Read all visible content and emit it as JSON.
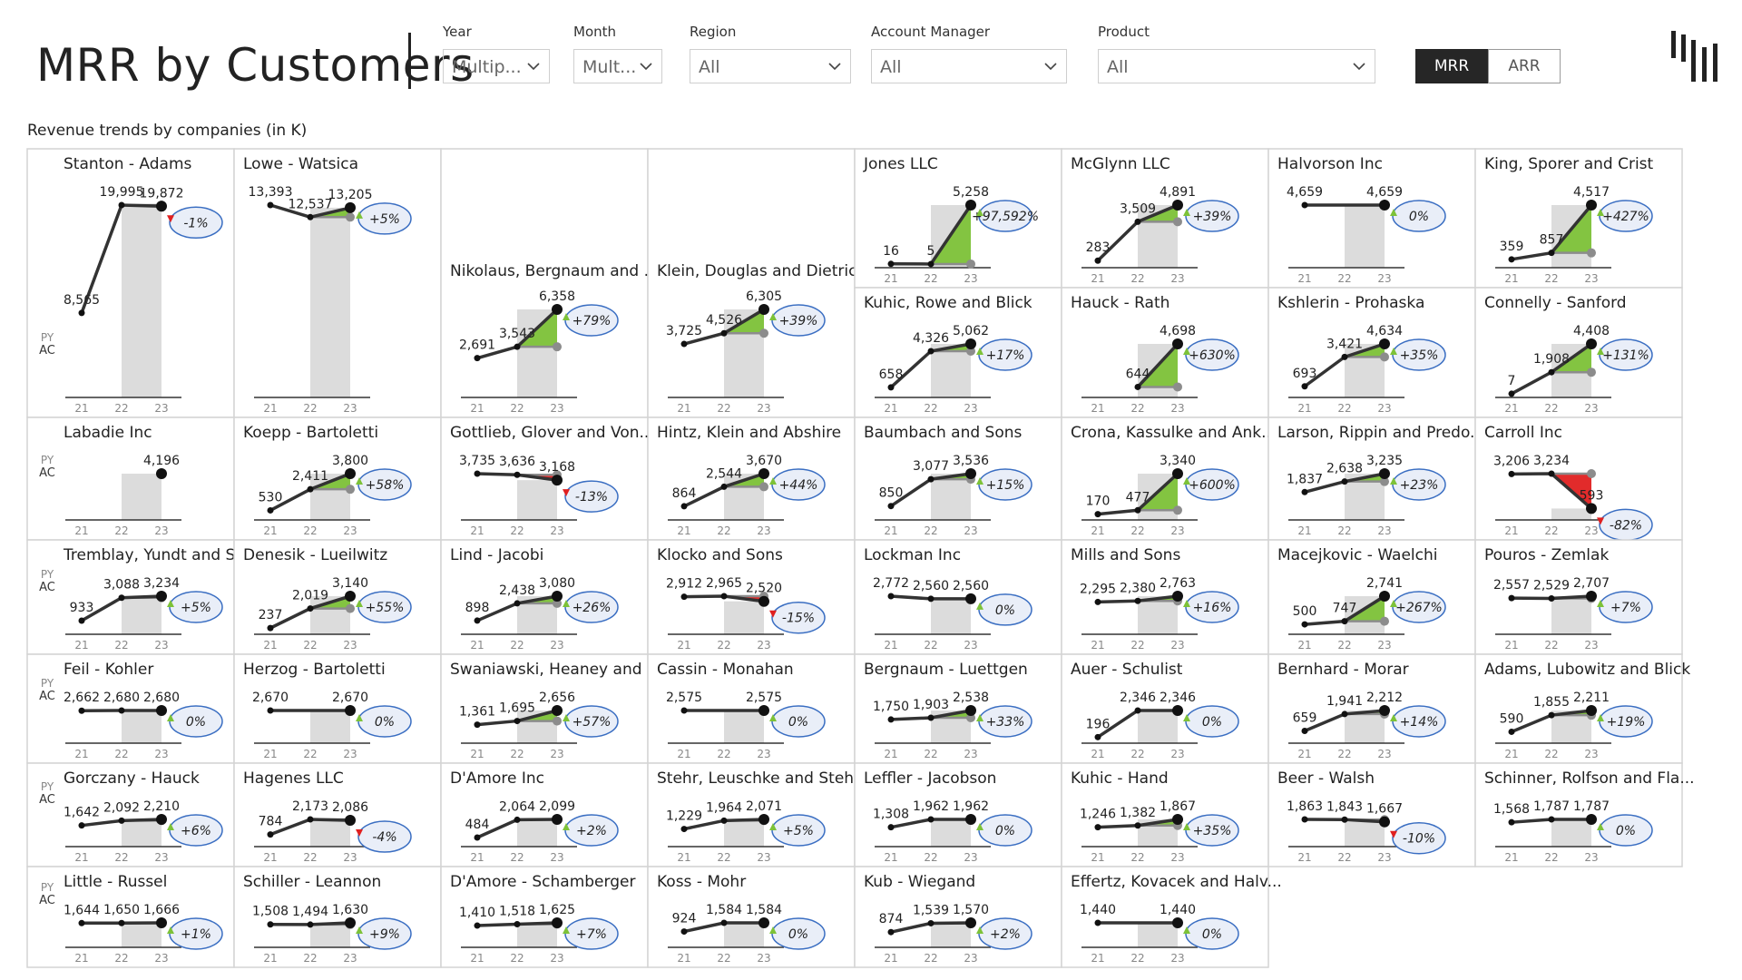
{
  "title": "MRR by Customers",
  "filters": [
    {
      "label": "Year",
      "value": "Multip..."
    },
    {
      "label": "Month",
      "value": "Mult..."
    },
    {
      "label": "Region",
      "value": "All"
    },
    {
      "label": "Account Manager",
      "value": "All"
    },
    {
      "label": "Product",
      "value": "All"
    }
  ],
  "toggle": {
    "mrr": "MRR",
    "arr": "ARR",
    "selected": "MRR"
  },
  "subtitle": "Revenue trends by companies (in K)",
  "x_ticks": [
    "21",
    "22",
    "23"
  ],
  "legend_labels": {
    "py": "PY",
    "ac": "AC"
  },
  "colors": {
    "positive": "#7dc238",
    "negative": "#e02020",
    "line": "#333333",
    "py_line": "#8c8c8c",
    "band": "#dcdcdc",
    "badge_border": "#3a6ec2",
    "badge_fill": "#e9eef8"
  },
  "chart_data": {
    "type": "line",
    "x": [
      "21",
      "22",
      "23"
    ],
    "series": [
      {
        "name": "Stanton - Adams",
        "values": [
          8565,
          19995,
          19872
        ],
        "labels": [
          "8,565",
          "19,995",
          "19,872"
        ],
        "delta": "-1%"
      },
      {
        "name": "Lowe - Watsica",
        "values": [
          13393,
          12537,
          13205
        ],
        "labels": [
          "13,393",
          "12,537",
          "13,205"
        ],
        "delta": "+5%"
      },
      {
        "name": "Nikolaus, Bergnaum and ...",
        "values": [
          2691,
          3543,
          6358
        ],
        "labels": [
          "2,691",
          "3,543",
          "6,358"
        ],
        "delta": "+79%"
      },
      {
        "name": "Klein, Douglas and Dietrich",
        "values": [
          3725,
          4526,
          6305
        ],
        "labels": [
          "3,725",
          "4,526",
          "6,305"
        ],
        "delta": "+39%"
      },
      {
        "name": "Jones LLC",
        "values": [
          16,
          5,
          5258
        ],
        "labels": [
          "16",
          "5",
          "5,258"
        ],
        "delta": "+97,592%"
      },
      {
        "name": "McGlynn LLC",
        "values": [
          283,
          3509,
          4891
        ],
        "labels": [
          "283",
          "3,509",
          "4,891"
        ],
        "delta": "+39%"
      },
      {
        "name": "Halvorson Inc",
        "values": [
          4659,
          null,
          4659
        ],
        "labels": [
          "4,659",
          "",
          "4,659"
        ],
        "delta": "0%"
      },
      {
        "name": "King, Sporer and Crist",
        "values": [
          359,
          857,
          4517
        ],
        "labels": [
          "359",
          "857",
          "4,517"
        ],
        "delta": "+427%"
      },
      {
        "name": "Kuhic, Rowe and Blick",
        "values": [
          658,
          4326,
          5062
        ],
        "labels": [
          "658",
          "4,326",
          "5,062"
        ],
        "delta": "+17%"
      },
      {
        "name": "Hauck - Rath",
        "values": [
          null,
          644,
          4698
        ],
        "labels": [
          "",
          "644",
          "4,698"
        ],
        "delta": "+630%"
      },
      {
        "name": "Kshlerin - Prohaska",
        "values": [
          693,
          3421,
          4634
        ],
        "labels": [
          "693",
          "3,421",
          "4,634"
        ],
        "delta": "+35%"
      },
      {
        "name": "Connelly - Sanford",
        "values": [
          7,
          1908,
          4408
        ],
        "labels": [
          "7",
          "1,908",
          "4,408"
        ],
        "delta": "+131%"
      },
      {
        "name": "Labadie Inc",
        "values": [
          null,
          null,
          4196
        ],
        "labels": [
          "",
          "",
          "4,196"
        ],
        "delta": ""
      },
      {
        "name": "Koepp - Bartoletti",
        "values": [
          530,
          2411,
          3800
        ],
        "labels": [
          "530",
          "2,411",
          "3,800"
        ],
        "delta": "+58%"
      },
      {
        "name": "Gottlieb, Glover and Von...",
        "values": [
          3735,
          3636,
          3168
        ],
        "labels": [
          "3,735",
          "3,636",
          "3,168"
        ],
        "delta": "-13%"
      },
      {
        "name": "Hintz, Klein and Abshire",
        "values": [
          864,
          2544,
          3670
        ],
        "labels": [
          "864",
          "2,544",
          "3,670"
        ],
        "delta": "+44%"
      },
      {
        "name": "Baumbach and Sons",
        "values": [
          850,
          3077,
          3536
        ],
        "labels": [
          "850",
          "3,077",
          "3,536"
        ],
        "delta": "+15%"
      },
      {
        "name": "Crona, Kassulke and Ank...",
        "values": [
          170,
          477,
          3340
        ],
        "labels": [
          "170",
          "477",
          "3,340"
        ],
        "delta": "+600%"
      },
      {
        "name": "Larson, Rippin and Predo...",
        "values": [
          1837,
          2638,
          3235
        ],
        "labels": [
          "1,837",
          "2,638",
          "3,235"
        ],
        "delta": "+23%"
      },
      {
        "name": "Carroll Inc",
        "values": [
          3206,
          3234,
          593
        ],
        "labels": [
          "3,206",
          "3,234",
          "593"
        ],
        "delta": "-82%"
      },
      {
        "name": "Tremblay, Yundt and Swa...",
        "values": [
          933,
          3088,
          3234
        ],
        "labels": [
          "933",
          "3,088",
          "3,234"
        ],
        "delta": "+5%"
      },
      {
        "name": "Denesik - Lueilwitz",
        "values": [
          237,
          2019,
          3140
        ],
        "labels": [
          "237",
          "2,019",
          "3,140"
        ],
        "delta": "+55%"
      },
      {
        "name": "Lind - Jacobi",
        "values": [
          898,
          2438,
          3080
        ],
        "labels": [
          "898",
          "2,438",
          "3,080"
        ],
        "delta": "+26%"
      },
      {
        "name": "Klocko and Sons",
        "values": [
          2912,
          2965,
          2520
        ],
        "labels": [
          "2,912",
          "2,965",
          "2,520"
        ],
        "delta": "-15%"
      },
      {
        "name": "Lockman Inc",
        "values": [
          2772,
          2560,
          2560
        ],
        "labels": [
          "2,772",
          "2,560",
          "2,560"
        ],
        "delta": "0%"
      },
      {
        "name": "Mills and Sons",
        "values": [
          2295,
          2380,
          2763
        ],
        "labels": [
          "2,295",
          "2,380",
          "2,763"
        ],
        "delta": "+16%"
      },
      {
        "name": "Macejkovic - Waelchi",
        "values": [
          500,
          747,
          2741
        ],
        "labels": [
          "500",
          "747",
          "2,741"
        ],
        "delta": "+267%"
      },
      {
        "name": "Pouros - Zemlak",
        "values": [
          2557,
          2529,
          2707
        ],
        "labels": [
          "2,557",
          "2,529",
          "2,707"
        ],
        "delta": "+7%"
      },
      {
        "name": "Feil - Kohler",
        "values": [
          2662,
          2680,
          2680
        ],
        "labels": [
          "2,662",
          "2,680",
          "2,680"
        ],
        "delta": "0%"
      },
      {
        "name": "Herzog - Bartoletti",
        "values": [
          2670,
          null,
          2670
        ],
        "labels": [
          "2,670",
          "",
          "2,670"
        ],
        "delta": "0%"
      },
      {
        "name": "Swaniawski, Heaney and ...",
        "values": [
          1361,
          1695,
          2656
        ],
        "labels": [
          "1,361",
          "1,695",
          "2,656"
        ],
        "delta": "+57%"
      },
      {
        "name": "Cassin - Monahan",
        "values": [
          2575,
          null,
          2575
        ],
        "labels": [
          "2,575",
          "",
          "2,575"
        ],
        "delta": "0%"
      },
      {
        "name": "Bergnaum - Luettgen",
        "values": [
          1750,
          1903,
          2538
        ],
        "labels": [
          "1,750",
          "1,903",
          "2,538"
        ],
        "delta": "+33%"
      },
      {
        "name": "Auer - Schulist",
        "values": [
          196,
          2346,
          2346
        ],
        "labels": [
          "196",
          "2,346",
          "2,346"
        ],
        "delta": "0%"
      },
      {
        "name": "Bernhard - Morar",
        "values": [
          659,
          1941,
          2212
        ],
        "labels": [
          "659",
          "1,941",
          "2,212"
        ],
        "delta": "+14%"
      },
      {
        "name": "Adams, Lubowitz and Blick",
        "values": [
          590,
          1855,
          2211
        ],
        "labels": [
          "590",
          "1,855",
          "2,211"
        ],
        "delta": "+19%"
      },
      {
        "name": "Gorczany - Hauck",
        "values": [
          1642,
          2092,
          2210
        ],
        "labels": [
          "1,642",
          "2,092",
          "2,210"
        ],
        "delta": "+6%"
      },
      {
        "name": "Hagenes LLC",
        "values": [
          784,
          2173,
          2086
        ],
        "labels": [
          "784",
          "2,173",
          "2,086"
        ],
        "delta": "-4%"
      },
      {
        "name": "D'Amore Inc",
        "values": [
          484,
          2064,
          2099
        ],
        "labels": [
          "484",
          "2,064",
          "2,099"
        ],
        "delta": "+2%"
      },
      {
        "name": "Stehr, Leuschke and Stehr",
        "values": [
          1229,
          1964,
          2071
        ],
        "labels": [
          "1,229",
          "1,964",
          "2,071"
        ],
        "delta": "+5%"
      },
      {
        "name": "Leffler - Jacobson",
        "values": [
          1308,
          1962,
          1962
        ],
        "labels": [
          "1,308",
          "1,962",
          "1,962"
        ],
        "delta": "0%"
      },
      {
        "name": "Kuhic - Hand",
        "values": [
          1246,
          1382,
          1867
        ],
        "labels": [
          "1,246",
          "1,382",
          "1,867"
        ],
        "delta": "+35%"
      },
      {
        "name": "Beer - Walsh",
        "values": [
          1863,
          1843,
          1667
        ],
        "labels": [
          "1,863",
          "1,843",
          "1,667"
        ],
        "delta": "-10%"
      },
      {
        "name": "Schinner, Rolfson and Fla...",
        "values": [
          1568,
          1787,
          1787
        ],
        "labels": [
          "1,568",
          "1,787",
          "1,787"
        ],
        "delta": "0%"
      },
      {
        "name": "Little - Russel",
        "values": [
          1644,
          1650,
          1666
        ],
        "labels": [
          "1,644",
          "1,650",
          "1,666"
        ],
        "delta": "+1%"
      },
      {
        "name": "Schiller - Leannon",
        "values": [
          1508,
          1494,
          1630
        ],
        "labels": [
          "1,508",
          "1,494",
          "1,630"
        ],
        "delta": "+9%"
      },
      {
        "name": "D'Amore - Schamberger",
        "values": [
          1410,
          1518,
          1625
        ],
        "labels": [
          "1,410",
          "1,518",
          "1,625"
        ],
        "delta": "+7%"
      },
      {
        "name": "Koss - Mohr",
        "values": [
          924,
          1584,
          1584
        ],
        "labels": [
          "924",
          "1,584",
          "1,584"
        ],
        "delta": "0%"
      },
      {
        "name": "Kub - Wiegand",
        "values": [
          874,
          1539,
          1570
        ],
        "labels": [
          "874",
          "1,539",
          "1,570"
        ],
        "delta": "+2%"
      },
      {
        "name": "Effertz, Kovacek and Halv...",
        "values": [
          1440,
          null,
          1440
        ],
        "labels": [
          "1,440",
          "",
          "1,440"
        ],
        "delta": "0%"
      }
    ]
  }
}
